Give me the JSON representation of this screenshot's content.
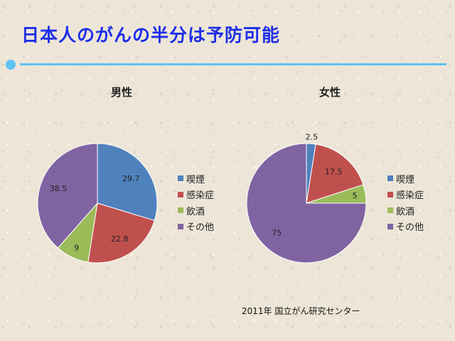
{
  "slide": {
    "title": "日本人のがんの半分は予防可能",
    "source": "2011年 国立がん研究センター"
  },
  "colors": {
    "喫煙": "#4f81bd",
    "感染症": "#c0504d",
    "飲酒": "#9bbb59",
    "その他": "#8064a2",
    "title": "#1d2ee8",
    "accent_line": "#5cc3f0"
  },
  "chart_data": [
    {
      "type": "pie",
      "title": "男性",
      "categories": [
        "喫煙",
        "感染症",
        "飲酒",
        "その他"
      ],
      "values": [
        29.7,
        22.8,
        9,
        38.5
      ],
      "labels": [
        "29.7",
        "22.8",
        "9",
        "38.5"
      ],
      "legend": "right"
    },
    {
      "type": "pie",
      "title": "女性",
      "categories": [
        "喫煙",
        "感染症",
        "飲酒",
        "その他"
      ],
      "values": [
        2.5,
        17.5,
        5,
        75
      ],
      "labels": [
        "2.5",
        "17.5",
        "5",
        "75"
      ],
      "legend": "right"
    }
  ]
}
